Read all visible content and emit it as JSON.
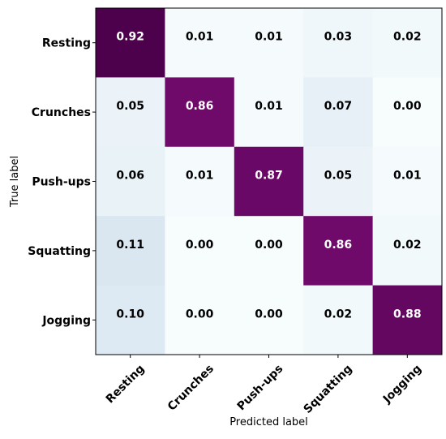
{
  "chart_data": {
    "type": "heatmap",
    "title": "",
    "xlabel": "Predicted label",
    "ylabel": "True label",
    "rows": [
      "Resting",
      "Crunches",
      "Push-ups",
      "Squatting",
      "Jogging"
    ],
    "columns": [
      "Resting",
      "Crunches",
      "Push-ups",
      "Squatting",
      "Jogging"
    ],
    "values": [
      [
        0.92,
        0.01,
        0.01,
        0.03,
        0.02
      ],
      [
        0.05,
        0.86,
        0.01,
        0.07,
        0.0
      ],
      [
        0.06,
        0.01,
        0.87,
        0.05,
        0.01
      ],
      [
        0.11,
        0.0,
        0.0,
        0.86,
        0.02
      ],
      [
        0.1,
        0.0,
        0.0,
        0.02,
        0.88
      ]
    ],
    "value_labels": [
      [
        "0.92",
        "0.01",
        "0.01",
        "0.03",
        "0.02"
      ],
      [
        "0.05",
        "0.86",
        "0.01",
        "0.07",
        "0.00"
      ],
      [
        "0.06",
        "0.01",
        "0.87",
        "0.05",
        "0.01"
      ],
      [
        "0.11",
        "0.00",
        "0.00",
        "0.86",
        "0.02"
      ],
      [
        "0.10",
        "0.00",
        "0.00",
        "0.02",
        "0.88"
      ]
    ],
    "colormap": "white-to-purple",
    "colors": {
      "low": "#f7fcfd",
      "high": "#4d004b"
    },
    "grid": false
  }
}
